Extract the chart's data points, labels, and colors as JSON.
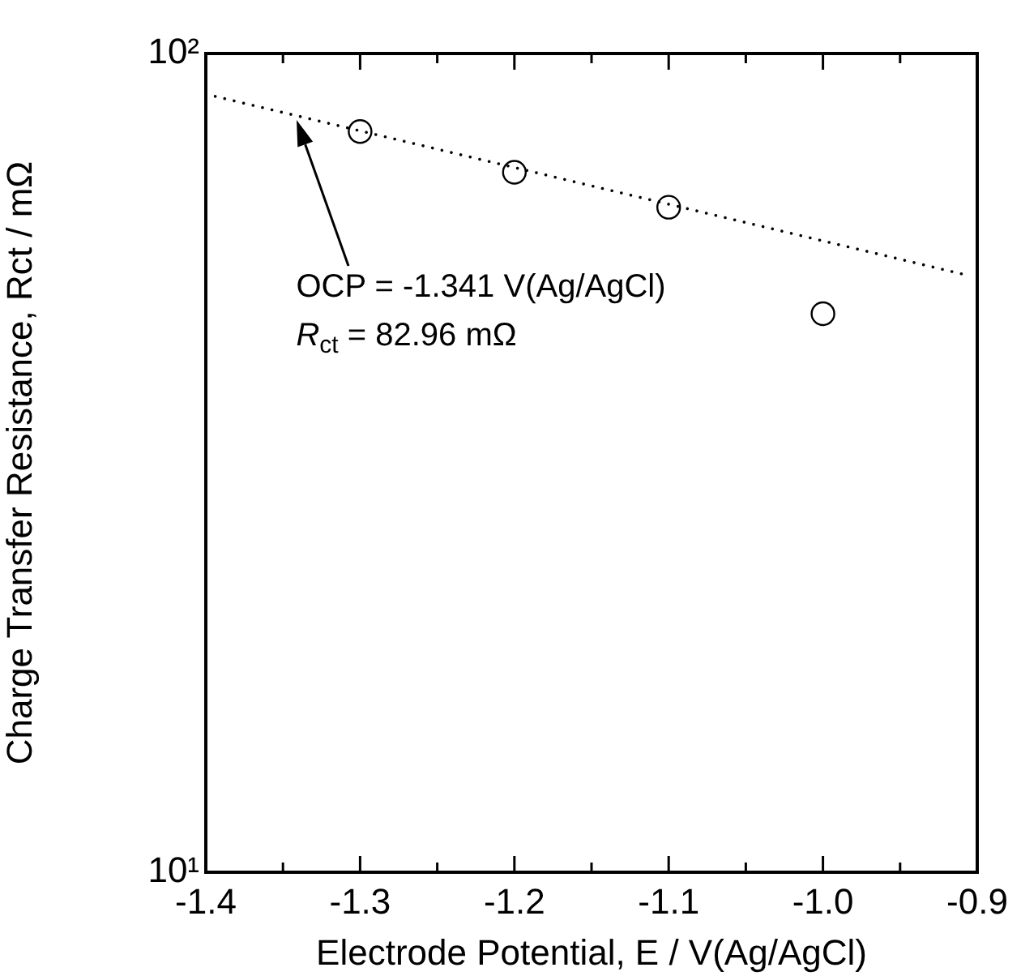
{
  "chart_data": {
    "type": "scatter",
    "xlabel": "Electrode Potential, E / V(Ag/AgCl)",
    "ylabel": "Charge Transfer Resistance, Rct / mΩ",
    "log": "y",
    "grid": false,
    "legend": false,
    "marker": "circle",
    "xlim": [
      -1.4,
      -0.9
    ],
    "ylim": [
      10,
      100
    ],
    "xticks": [
      -1.4,
      {
        "value": -1.35,
        "label": null
      },
      -1.3,
      {
        "value": -1.25,
        "label": null
      },
      -1.2,
      {
        "value": -1.15,
        "label": null
      },
      -1.1,
      {
        "value": -1.05,
        "label": null
      },
      {
        "value": -1.0,
        "label": "-1.0"
      },
      {
        "value": -0.95,
        "label": null
      },
      -0.9
    ],
    "yticks": [
      {
        "value": 10,
        "label": "10¹"
      },
      {
        "value": 100,
        "label": "10²"
      }
    ],
    "series": [
      {
        "type": "scatter",
        "color": "#000000",
        "x": [
          -1.3,
          -1.2,
          -1.1,
          -1.0
        ],
        "values": [
          80.3,
          71.6,
          64.9,
          48.1
        ]
      },
      {
        "type": "line",
        "color": "#000000",
        "line_style": "dotted",
        "marker": "none",
        "x": [
          -1.4,
          -0.91
        ],
        "values": [
          89.2,
          53.8
        ]
      }
    ],
    "annotations": [
      "OCP = -1.341 V(Ag/AgCl)\nR$_{ct}$ = 82.96 mΩ"
    ]
  }
}
